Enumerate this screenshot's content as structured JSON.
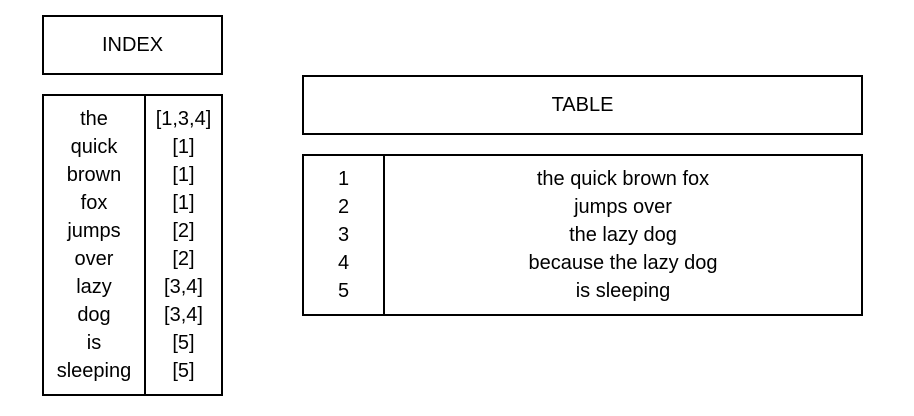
{
  "index": {
    "title": "INDEX",
    "entries": [
      {
        "word": "the",
        "refs": "[1,3,4]"
      },
      {
        "word": "quick",
        "refs": "[1]"
      },
      {
        "word": "brown",
        "refs": "[1]"
      },
      {
        "word": "fox",
        "refs": "[1]"
      },
      {
        "word": "jumps",
        "refs": "[2]"
      },
      {
        "word": "over",
        "refs": "[2]"
      },
      {
        "word": "lazy",
        "refs": "[3,4]"
      },
      {
        "word": "dog",
        "refs": "[3,4]"
      },
      {
        "word": "is",
        "refs": "[5]"
      },
      {
        "word": "sleeping",
        "refs": "[5]"
      }
    ]
  },
  "table": {
    "title": "TABLE",
    "rows": [
      {
        "id": "1",
        "text": "the quick brown fox"
      },
      {
        "id": "2",
        "text": "jumps over"
      },
      {
        "id": "3",
        "text": "the lazy dog"
      },
      {
        "id": "4",
        "text": "because the lazy dog"
      },
      {
        "id": "5",
        "text": "is sleeping"
      }
    ]
  }
}
